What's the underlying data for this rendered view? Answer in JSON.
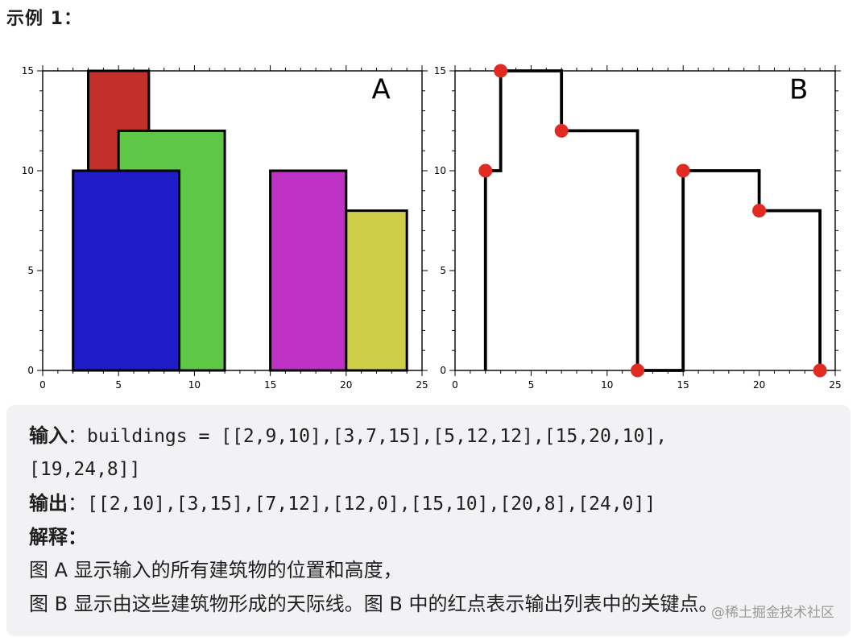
{
  "heading": {
    "title": "示例 1："
  },
  "figure": {
    "panel_a_label": "A",
    "panel_b_label": "B"
  },
  "chart_data": [
    {
      "type": "bar",
      "title": "A",
      "xlim": [
        0,
        25
      ],
      "ylim": [
        0,
        15
      ],
      "xticks": [
        0,
        5,
        10,
        15,
        20,
        25
      ],
      "yticks": [
        0,
        5,
        10,
        15
      ],
      "grid": false,
      "buildings": [
        {
          "left": 2,
          "right": 9,
          "height": 10,
          "color": "#1f1bc7"
        },
        {
          "left": 3,
          "right": 7,
          "height": 15,
          "color": "#c1302a"
        },
        {
          "left": 5,
          "right": 12,
          "height": 12,
          "color": "#5ec745"
        },
        {
          "left": 15,
          "right": 20,
          "height": 10,
          "color": "#bd31c5"
        },
        {
          "left": 19,
          "right": 24,
          "height": 8,
          "color": "#cfce49"
        }
      ]
    },
    {
      "type": "line",
      "title": "B",
      "xlim": [
        0,
        25
      ],
      "ylim": [
        0,
        15
      ],
      "xticks": [
        0,
        5,
        10,
        15,
        20,
        25
      ],
      "yticks": [
        0,
        5,
        10,
        15
      ],
      "grid": false,
      "line_color": "#000000",
      "point_color": "#e12b22",
      "skyline_path": [
        [
          2,
          0
        ],
        [
          2,
          10
        ],
        [
          3,
          10
        ],
        [
          3,
          15
        ],
        [
          7,
          15
        ],
        [
          7,
          12
        ],
        [
          12,
          12
        ],
        [
          12,
          0
        ],
        [
          15,
          0
        ],
        [
          15,
          10
        ],
        [
          20,
          10
        ],
        [
          20,
          8
        ],
        [
          24,
          8
        ],
        [
          24,
          0
        ]
      ],
      "key_points": [
        [
          2,
          10
        ],
        [
          3,
          15
        ],
        [
          7,
          12
        ],
        [
          12,
          0
        ],
        [
          15,
          10
        ],
        [
          20,
          8
        ],
        [
          24,
          0
        ]
      ]
    }
  ],
  "example": {
    "input_label": "输入",
    "colon": "：",
    "input_line1": "buildings = [[2,9,10],[3,7,15],[5,12,12],[15,20,10],",
    "input_line2": "[19,24,8]]",
    "output_label": "输出",
    "output_value": "[[2,10],[3,15],[7,12],[12,0],[15,10],[20,8],[24,0]]",
    "explanation_label": "解释：",
    "explanation_line1": "图 A 显示输入的所有建筑物的位置和高度，",
    "explanation_line2": "图 B 显示由这些建筑物形成的天际线。图 B 中的红点表示输出列表中的关键点。"
  },
  "watermark": {
    "text": "@稀土掘金技术社区"
  }
}
